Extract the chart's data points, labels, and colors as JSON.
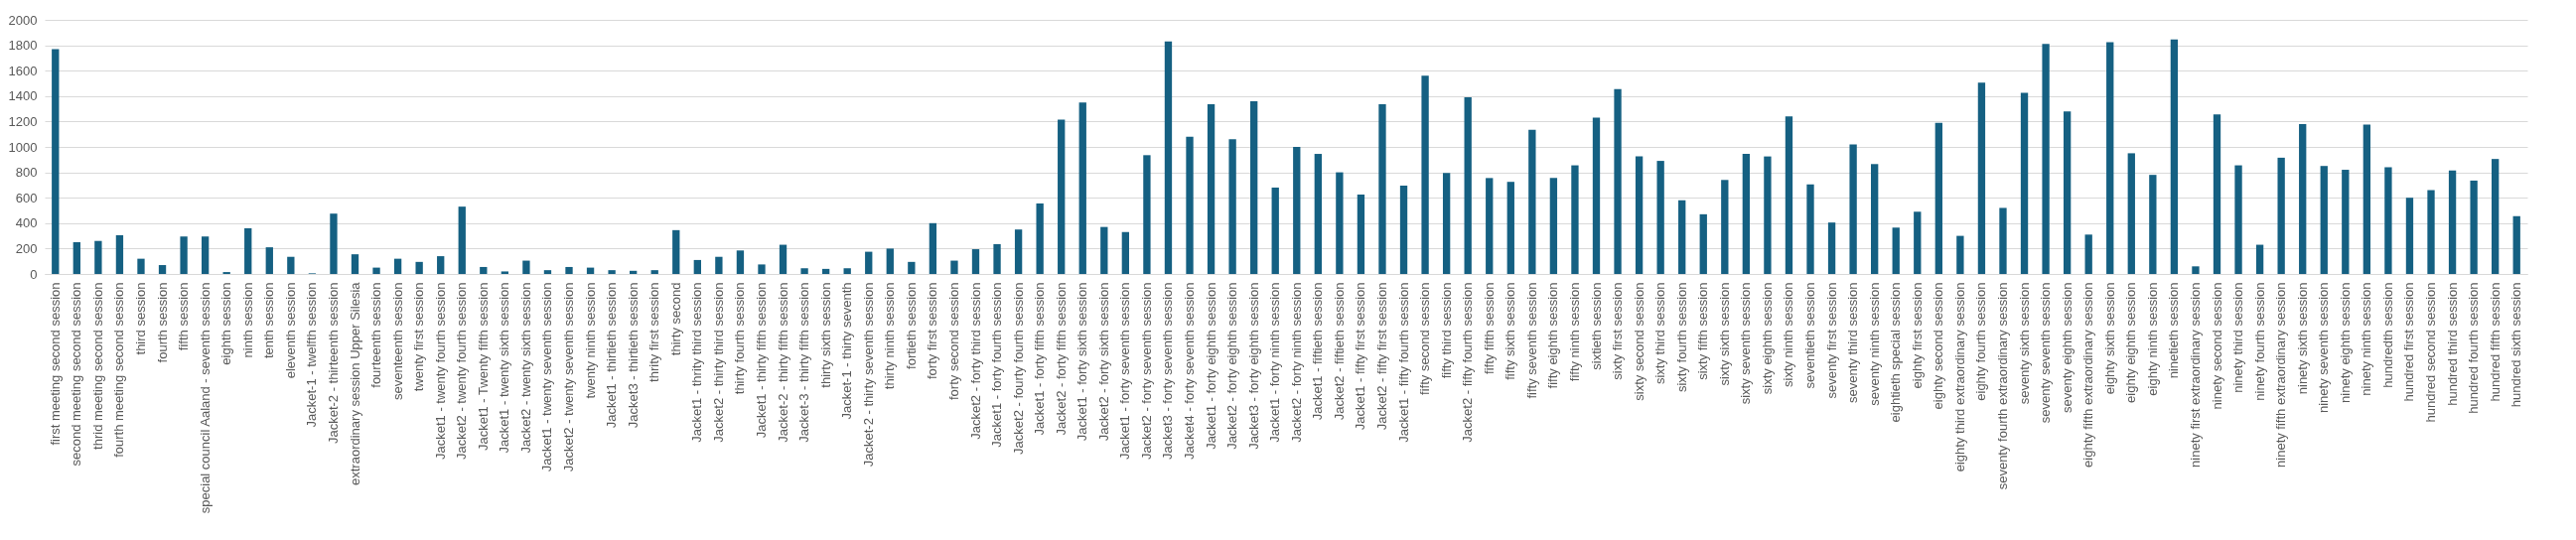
{
  "chart_data": {
    "type": "bar",
    "categories": [
      "first meeting second session",
      "second meeting second session",
      "thrid meeting second session",
      "fourth meeting second session",
      "third session",
      "fourth session",
      "fifth session",
      "special council Aaland - seventh session",
      "eighth session",
      "ninth session",
      "tenth session",
      "eleventh session",
      "Jacket-1 - twelfth session",
      "Jacket-2 - thirteenth session",
      "extraordinary session Upper Silesia",
      "fourteenth session",
      "seventeenth session",
      "twenty first session",
      "Jacket1 - twenty fourth session",
      "Jacket2 - twenty fourth session",
      "Jacket1 - Twenty fifth session",
      "Jacket1 - twenty sixth session",
      "Jacket2 - twenty sixth session",
      "Jacket1 - twenty seventh session",
      "Jacket2 - twenty seventh session",
      "twenty ninth session",
      "Jacket1 - thirtieth session",
      "Jacket3 - thirtieth session",
      "thrity first session",
      "thirty second",
      "Jacket1 - thrity third session",
      "Jacket2 - thirty third session",
      "thirty fourth session",
      "Jacket1 - thirty fifth session",
      "Jacket-2 - thirty fifth session",
      "Jacket-3 - thirty fifth session",
      "thirty sixth session",
      "Jacket-1 - thirty seventh",
      "Jacket-2 - thirty seventh session",
      "thirty ninth session",
      "fortieth session",
      "forty first session",
      "forty second session",
      "Jacket2 - forty third session",
      "Jacket1 - forty fourth session",
      "Jacket2 - fourty fourth session",
      "Jacket1 - forty fifth session",
      "Jacket2 - forty fifth session",
      "Jacket1 - forty sixth session",
      "Jacket2 - forty sixth session",
      "Jacket1 - forty seventh session",
      "Jacket2 - forty seventh session",
      "Jacket3 - forty seventh session",
      "Jacket4 - forty seventh session",
      "Jacket1 - forty eighth session",
      "Jacket2 - forty eighth session",
      "Jacket3 - forty eighth session",
      "Jacket1 - forty ninth session",
      "Jacket2 - forty ninth session",
      "Jacket1 - fiftieth session",
      "Jacket2 - fiftieth session",
      "Jacket1 - fifty first session",
      "Jacket2 - fifty first session",
      "Jacket1 - fifty fourth session",
      "fifty second session",
      "fifty third session",
      "Jacket2 - fifty fourth session",
      "fifty fifth session",
      "fifty sixth session",
      "fifty seventh session",
      "fifty eighth session",
      "fifty ninth session",
      "sixtieth session",
      "sixty first session",
      "sixty second session",
      "sixty third session",
      "sixty fourth session",
      "sixty fifth session",
      "sixty sixth session",
      "sixty seventh session",
      "sixty eighth session",
      "sixty ninth session",
      "seventieth session",
      "seventy first session",
      "seventy third session",
      "seventy ninth session",
      "eightieth special session",
      "eighty first session",
      "eighty second session",
      "eighty third extraordinary session",
      "eighty fourth session",
      "seventy fourth extraordinary session",
      "seventy sixth session",
      "seventy seventh session",
      "seventy eighth session",
      "eighty fifth extraordinary session",
      "eighty sixth session",
      "eighty eighth session",
      "eighty ninth session",
      "ninetieth session",
      "ninety first extraordinary session",
      "ninety second session",
      "ninety third session",
      "ninety fourth session",
      "ninety fifth extraordinary session",
      "ninety sixth session",
      "ninety seventh session",
      "ninety eighth session",
      "ninety ninth session",
      "hundredth session",
      "hundred first session",
      "hundred second session",
      "hundred third session",
      "hundred fourth session",
      "hundred fifth session",
      "hundred sixth session"
    ],
    "values": [
      1770,
      250,
      260,
      305,
      120,
      70,
      295,
      295,
      15,
      360,
      210,
      135,
      5,
      475,
      155,
      50,
      120,
      95,
      140,
      530,
      55,
      20,
      105,
      30,
      55,
      50,
      30,
      25,
      30,
      345,
      110,
      135,
      185,
      75,
      230,
      45,
      40,
      45,
      175,
      200,
      95,
      400,
      105,
      195,
      235,
      350,
      555,
      1215,
      1350,
      370,
      330,
      935,
      1830,
      1080,
      1335,
      1060,
      1360,
      680,
      1000,
      945,
      800,
      625,
      1335,
      695,
      1560,
      795,
      1390,
      755,
      725,
      1135,
      755,
      855,
      1230,
      1455,
      925,
      890,
      580,
      470,
      740,
      945,
      925,
      1240,
      705,
      405,
      1020,
      865,
      365,
      490,
      1190,
      300,
      1505,
      520,
      1425,
      1810,
      1280,
      310,
      1825,
      950,
      780,
      1845,
      60,
      1255,
      855,
      230,
      915,
      1180,
      850,
      820,
      1175,
      840,
      600,
      660,
      815,
      735,
      905,
      455
    ],
    "color": "#156082",
    "ylim": [
      0,
      2000
    ],
    "yticks": [
      0,
      200,
      400,
      600,
      800,
      1000,
      1200,
      1400,
      1600,
      1800,
      2000
    ],
    "grid": "y"
  }
}
